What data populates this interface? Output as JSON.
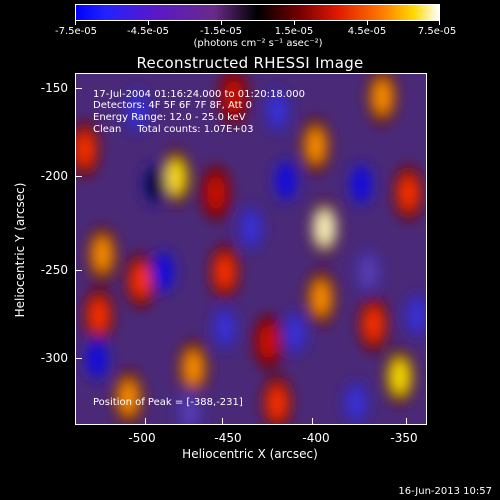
{
  "colorbar": {
    "tick_labels": [
      "-7.5e-05",
      "-4.5e-05",
      "-1.5e-05",
      "1.5e-05",
      "4.5e-05",
      "7.5e-05"
    ],
    "units_text": "(photons cm⁻² s⁻¹ asec⁻²)"
  },
  "title": "Reconstructed RHESSI Image",
  "annotations": {
    "time_range": "17-Jul-2004 01:16:24.000 to 01:20:18.000",
    "detectors": "Detectors: 4F 5F 6F 7F 8F, Att 0",
    "energy_range": "Energy Range: 12.0 - 25.0 keV",
    "method_counts": "Clean     Total counts: 1.07E+03",
    "peak_position": "Position of Peak = [-388,-231]"
  },
  "axes": {
    "xlabel": "Heliocentric X (arcsec)",
    "ylabel": "Heliocentric Y (arcsec)",
    "x_tick_labels": [
      "-500",
      "-450",
      "-400",
      "-350"
    ],
    "y_tick_labels": [
      "-150",
      "-200",
      "-250",
      "-300"
    ]
  },
  "timestamp": "16-Jun-2013 10:57",
  "chart_data": {
    "type": "heatmap",
    "title": "Reconstructed RHESSI Image",
    "xlabel": "Heliocentric X (arcsec)",
    "ylabel": "Heliocentric Y (arcsec)",
    "xlim": [
      -535,
      -335
    ],
    "ylim": [
      -337,
      -137
    ],
    "x_ticks": [
      -500,
      -450,
      -400,
      -350
    ],
    "y_ticks": [
      -150,
      -200,
      -250,
      -300
    ],
    "color_range": [
      -7.5e-05,
      7.5e-05
    ],
    "colorbar_ticks": [
      -7.5e-05,
      -4.5e-05,
      -1.5e-05,
      1.5e-05,
      4.5e-05,
      7.5e-05
    ],
    "peak_position": [
      -388,
      -231
    ],
    "blobs": [
      {
        "x": -478,
        "y": -196,
        "v": 7e-05
      },
      {
        "x": -393,
        "y": -225,
        "v": 7.5e-05
      },
      {
        "x": -398,
        "y": -178,
        "v": 5.5e-05
      },
      {
        "x": -395,
        "y": -265,
        "v": 6e-05
      },
      {
        "x": -350,
        "y": -310,
        "v": 6.5e-05
      },
      {
        "x": -468,
        "y": -305,
        "v": 6e-05
      },
      {
        "x": -520,
        "y": -240,
        "v": 5.5e-05
      },
      {
        "x": -522,
        "y": -275,
        "v": 5e-05
      },
      {
        "x": -498,
        "y": -255,
        "v": 4.5e-05
      },
      {
        "x": -450,
        "y": -250,
        "v": 4.5e-05
      },
      {
        "x": -425,
        "y": -290,
        "v": 4e-05
      },
      {
        "x": -360,
        "y": -150,
        "v": 5.5e-05
      },
      {
        "x": -345,
        "y": -205,
        "v": 5e-05
      },
      {
        "x": -505,
        "y": -322,
        "v": 5.5e-05
      },
      {
        "x": -420,
        "y": -325,
        "v": 5e-05
      },
      {
        "x": -445,
        "y": -150,
        "v": 4e-05
      },
      {
        "x": -530,
        "y": -180,
        "v": 4.5e-05
      },
      {
        "x": -365,
        "y": -280,
        "v": 4.5e-05
      },
      {
        "x": -455,
        "y": -205,
        "v": 3.5e-05
      },
      {
        "x": -490,
        "y": -200,
        "v": -7.5e-05
      },
      {
        "x": -485,
        "y": -250,
        "v": -6.5e-05
      },
      {
        "x": -415,
        "y": -198,
        "v": -5.5e-05
      },
      {
        "x": -372,
        "y": -200,
        "v": -6e-05
      },
      {
        "x": -523,
        "y": -300,
        "v": -6e-05
      },
      {
        "x": -435,
        "y": -225,
        "v": -4.5e-05
      },
      {
        "x": -420,
        "y": -158,
        "v": -4.5e-05
      },
      {
        "x": -410,
        "y": -285,
        "v": -4e-05
      },
      {
        "x": -450,
        "y": -282,
        "v": -4e-05
      },
      {
        "x": -500,
        "y": -158,
        "v": -4e-05
      },
      {
        "x": -368,
        "y": -250,
        "v": -3.5e-05
      },
      {
        "x": -340,
        "y": -275,
        "v": -4.5e-05
      },
      {
        "x": -470,
        "y": -330,
        "v": -3.5e-05
      },
      {
        "x": -375,
        "y": -325,
        "v": -4e-05
      }
    ]
  },
  "colors": {
    "background": "#000000",
    "foreground": "#ffffff"
  }
}
